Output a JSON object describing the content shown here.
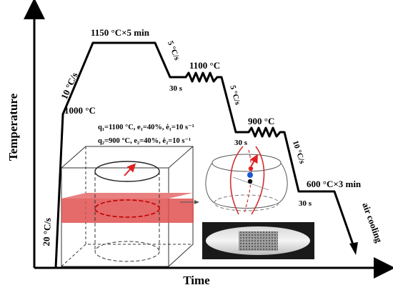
{
  "axes": {
    "y_label": "Temperature",
    "x_label": "Time"
  },
  "process": {
    "heating_rate_1": "20 °C/s",
    "preheat_temp": "1000 °C",
    "heating_rate_2": "10 °C/s",
    "soak": "1150 °C×5 min",
    "cooling_rate_1": "5 °C/s",
    "deform_1_temp": "1100 °C",
    "hold_1": "30 s",
    "cooling_rate_2": "5 °C/s",
    "deform_2_temp": "900 °C",
    "hold_2": "30 s",
    "cooling_rate_3": "10 °C/s",
    "final_hold": "600 °C×3 min",
    "final_cooling": "air cooling"
  },
  "conditions": {
    "line1": "q₁=1100 °C, e₁=40%, ė₁=10 s⁻¹",
    "line2": "q₂=900 °C, e₂=40%, ė₂=10 s⁻¹"
  },
  "colors": {
    "curve": "#000000",
    "section_plane": "#e05050",
    "arrow_red": "#e02020",
    "dot_blue": "#1a56d6"
  }
}
